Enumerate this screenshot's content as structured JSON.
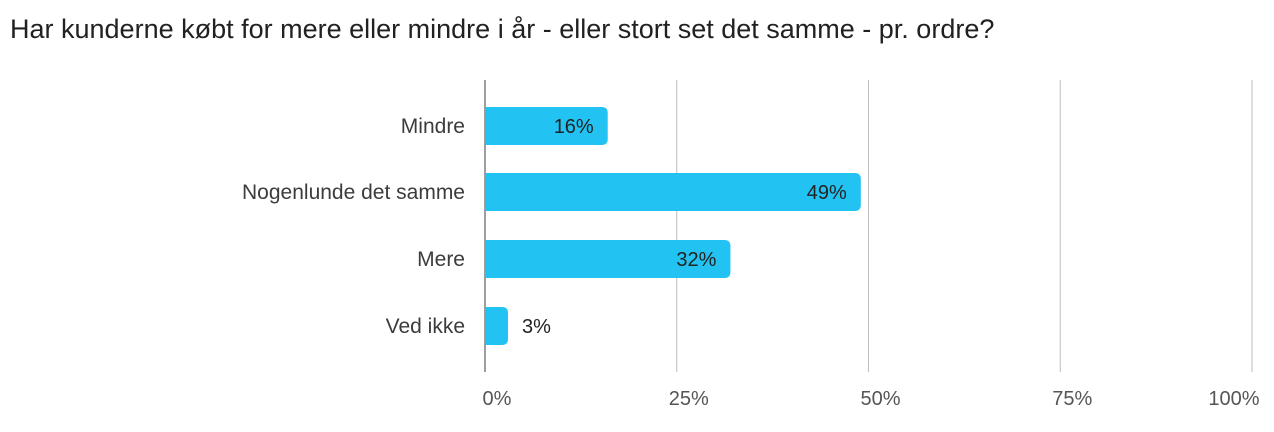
{
  "chart_data": {
    "type": "bar",
    "orientation": "horizontal",
    "title": "Har kunderne købt for mere eller mindre i år - eller stort set det samme - pr. ordre?",
    "categories": [
      "Mindre",
      "Nogenlunde det samme",
      "Mere",
      "Ved ikke"
    ],
    "values": [
      16,
      49,
      32,
      3
    ],
    "data_labels": [
      "16%",
      "49%",
      "32%",
      "3%"
    ],
    "x_ticks": [
      "0%",
      "25%",
      "50%",
      "75%",
      "100%"
    ],
    "x_tick_values": [
      0,
      25,
      50,
      75,
      100
    ],
    "xlim": [
      0,
      100
    ],
    "xlabel": "",
    "ylabel": "",
    "grid": true,
    "legend": "none",
    "bar_color": "#22c3f3",
    "grid_color": "#bdbdbd",
    "axis_color": "#9e9e9e"
  }
}
